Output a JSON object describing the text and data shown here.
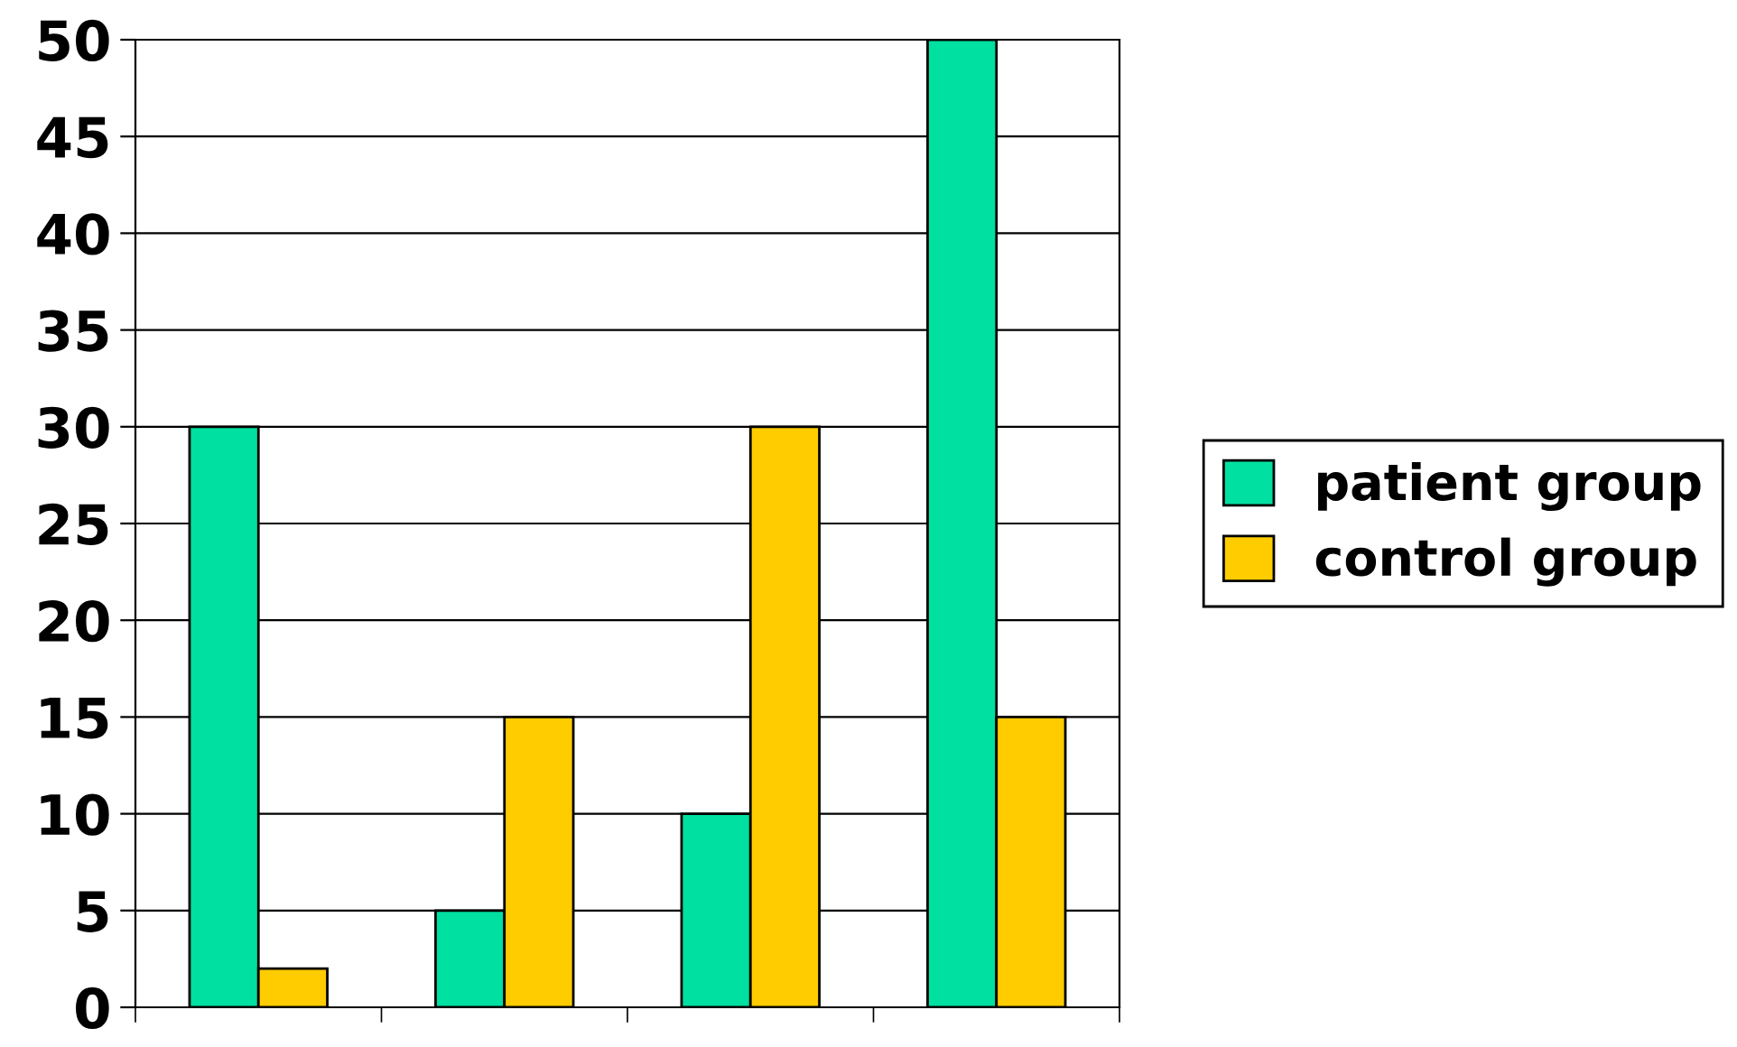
{
  "chart_data": {
    "type": "bar",
    "categories": [
      null,
      null,
      null,
      null
    ],
    "series": [
      {
        "name": "patient group",
        "color": "#00e0a0",
        "values": [
          30,
          5,
          10,
          50
        ]
      },
      {
        "name": "control group",
        "color": "#ffcc00",
        "values": [
          2,
          15,
          30,
          15
        ]
      }
    ],
    "ylim": [
      0,
      50
    ],
    "yticks": [
      0,
      5,
      10,
      15,
      20,
      25,
      30,
      35,
      40,
      45,
      50
    ],
    "grid": "y",
    "legend": "right"
  }
}
